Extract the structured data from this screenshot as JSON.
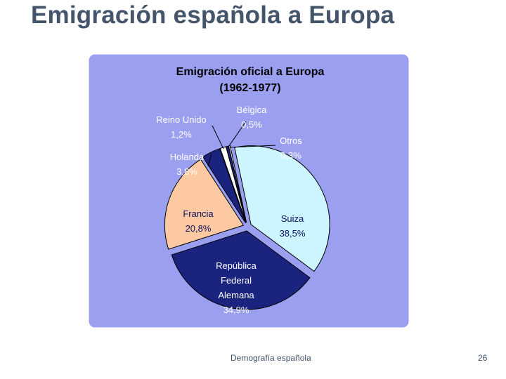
{
  "slide": {
    "title": "Emigración española a Europa",
    "footer": "Demografía española",
    "page_number": "26"
  },
  "colors": {
    "panel_bg": "#9aa0ef",
    "panel_border": "#ffffff",
    "label_text": "#ffffff",
    "dark_label_text": "#0d1160",
    "title_text": "#44546a"
  },
  "chart_data": {
    "type": "pie",
    "title_line1": "Emigración oficial a Europa",
    "title_line2": "(1962-1977)",
    "slices": [
      {
        "name": "Suiza",
        "value": 38.5,
        "value_label": "38,5%",
        "color": "#ccf5ff",
        "exploded": true
      },
      {
        "name": "República Federal Alemana",
        "value": 34.9,
        "value_label": "34,9%",
        "color": "#1a237e",
        "exploded": true,
        "label_lines": [
          "República",
          "Federal",
          "Alemana"
        ]
      },
      {
        "name": "Francia",
        "value": 20.8,
        "value_label": "20,8%",
        "color": "#fcc9a2",
        "exploded": true
      },
      {
        "name": "Holanda",
        "value": 3.8,
        "value_label": "3,8%",
        "color": "#1a237e",
        "exploded": true
      },
      {
        "name": "Reino Unido",
        "value": 1.2,
        "value_label": "1,2%",
        "color": "#ffffff",
        "exploded": true
      },
      {
        "name": "Bélgica",
        "value": 0.5,
        "value_label": "0,5%",
        "color": "#1a237e",
        "exploded": true
      },
      {
        "name": "Otros",
        "value": 0.3,
        "value_label": "0,3%",
        "color": "#ffffff",
        "exploded": true
      }
    ]
  }
}
